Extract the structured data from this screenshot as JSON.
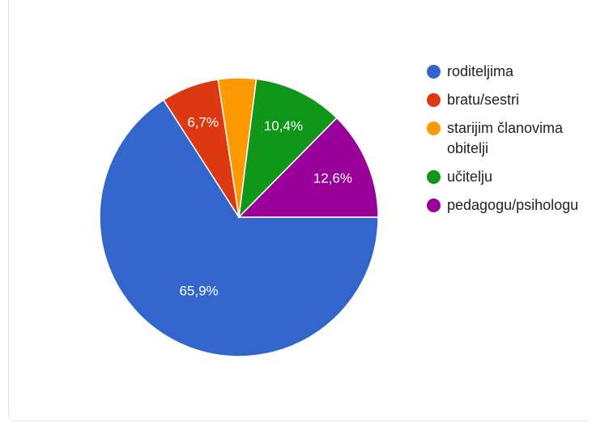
{
  "chart_data": {
    "type": "pie",
    "categories": [
      "roditeljima",
      "bratu/sestri",
      "starijim članovima obitelji",
      "učitelju",
      "pedagogu/psihologu"
    ],
    "values": [
      65.9,
      6.7,
      4.4,
      10.4,
      12.6
    ],
    "data_labels": [
      "65,9%",
      "6,7%",
      "",
      "10,4%",
      "12,6%"
    ],
    "colors": [
      "#3366cc",
      "#dc3912",
      "#ff9900",
      "#109618",
      "#990099"
    ],
    "legend_labels": [
      [
        "roditeljima"
      ],
      [
        "bratu/sestri"
      ],
      [
        "starijim članovima",
        "obitelji"
      ],
      [
        "učitelju"
      ],
      [
        "pedagogu/psihologu"
      ]
    ],
    "legend_position": "right",
    "title": ""
  }
}
